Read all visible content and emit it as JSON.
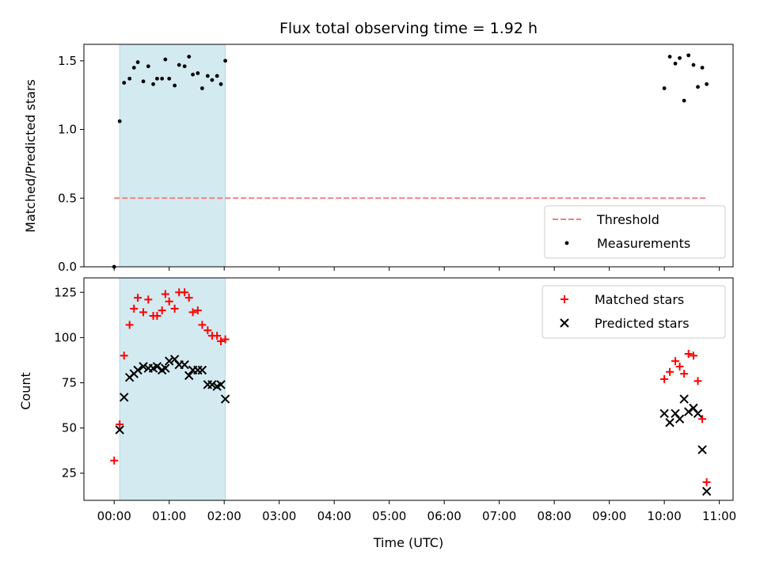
{
  "chart_data": [
    {
      "type": "scatter",
      "title": "Flux total observing time = 1.92 h",
      "ylabel": "Matched/Predicted stars",
      "ylim": [
        0,
        1.62
      ],
      "xlim": [
        -0.55,
        11.25
      ],
      "yticks": [
        0.0,
        0.5,
        1.0,
        1.5
      ],
      "ytick_labels": [
        "0.0",
        "0.5",
        "1.0",
        "1.5"
      ],
      "x_unit": "hours (UTC)",
      "shaded_interval": [
        0.1,
        2.02
      ],
      "shade_color": "#d4eaf1",
      "threshold": {
        "name": "Threshold",
        "value": 0.5,
        "x_range": [
          0.0,
          10.75
        ],
        "color": "#f2807f"
      },
      "series": [
        {
          "name": "Measurements",
          "marker": "dot",
          "color": "#000000",
          "points": [
            [
              0.0,
              0.0
            ],
            [
              0.1,
              1.06
            ],
            [
              0.18,
              1.34
            ],
            [
              0.28,
              1.37
            ],
            [
              0.36,
              1.45
            ],
            [
              0.43,
              1.49
            ],
            [
              0.53,
              1.35
            ],
            [
              0.62,
              1.46
            ],
            [
              0.71,
              1.33
            ],
            [
              0.78,
              1.37
            ],
            [
              0.87,
              1.37
            ],
            [
              0.93,
              1.51
            ],
            [
              1.0,
              1.37
            ],
            [
              1.1,
              1.32
            ],
            [
              1.18,
              1.47
            ],
            [
              1.28,
              1.46
            ],
            [
              1.36,
              1.53
            ],
            [
              1.43,
              1.4
            ],
            [
              1.52,
              1.41
            ],
            [
              1.6,
              1.3
            ],
            [
              1.7,
              1.39
            ],
            [
              1.78,
              1.36
            ],
            [
              1.87,
              1.39
            ],
            [
              1.94,
              1.33
            ],
            [
              2.02,
              1.5
            ],
            [
              10.0,
              1.3
            ],
            [
              10.1,
              1.53
            ],
            [
              10.2,
              1.48
            ],
            [
              10.28,
              1.52
            ],
            [
              10.36,
              1.21
            ],
            [
              10.44,
              1.54
            ],
            [
              10.53,
              1.47
            ],
            [
              10.61,
              1.31
            ],
            [
              10.69,
              1.45
            ],
            [
              10.77,
              1.33
            ]
          ]
        }
      ],
      "legend": {
        "location": "lower right",
        "entries": [
          "Threshold",
          "Measurements"
        ]
      }
    },
    {
      "type": "scatter",
      "xlabel": "Time (UTC)",
      "ylabel": "Count",
      "ylim": [
        10,
        133
      ],
      "xlim": [
        -0.55,
        11.25
      ],
      "yticks": [
        25,
        50,
        75,
        100,
        125
      ],
      "ytick_labels": [
        "25",
        "50",
        "75",
        "100",
        "125"
      ],
      "xticks": [
        0,
        1,
        2,
        3,
        4,
        5,
        6,
        7,
        8,
        9,
        10,
        11
      ],
      "xtick_labels": [
        "00:00",
        "01:00",
        "02:00",
        "03:00",
        "04:00",
        "05:00",
        "06:00",
        "07:00",
        "08:00",
        "09:00",
        "10:00",
        "11:00"
      ],
      "shaded_interval": [
        0.1,
        2.02
      ],
      "shade_color": "#d4eaf1",
      "series": [
        {
          "name": "Matched stars",
          "marker": "plus",
          "color": "#ff0000",
          "points": [
            [
              0.0,
              32
            ],
            [
              0.1,
              52
            ],
            [
              0.18,
              90
            ],
            [
              0.28,
              107
            ],
            [
              0.36,
              116
            ],
            [
              0.43,
              122
            ],
            [
              0.53,
              114
            ],
            [
              0.62,
              121
            ],
            [
              0.71,
              112
            ],
            [
              0.78,
              112
            ],
            [
              0.87,
              115
            ],
            [
              0.93,
              124
            ],
            [
              1.0,
              120
            ],
            [
              1.1,
              116
            ],
            [
              1.18,
              125
            ],
            [
              1.28,
              125
            ],
            [
              1.36,
              122
            ],
            [
              1.43,
              114
            ],
            [
              1.52,
              115
            ],
            [
              1.6,
              107
            ],
            [
              1.7,
              104
            ],
            [
              1.78,
              101
            ],
            [
              1.87,
              101
            ],
            [
              1.94,
              98
            ],
            [
              2.02,
              99
            ],
            [
              10.0,
              77
            ],
            [
              10.1,
              81
            ],
            [
              10.2,
              87
            ],
            [
              10.28,
              84
            ],
            [
              10.36,
              80
            ],
            [
              10.44,
              91
            ],
            [
              10.53,
              90
            ],
            [
              10.61,
              76
            ],
            [
              10.69,
              55
            ],
            [
              10.77,
              20
            ]
          ]
        },
        {
          "name": "Predicted stars",
          "marker": "x",
          "color": "#000000",
          "points": [
            [
              0.1,
              49
            ],
            [
              0.18,
              67
            ],
            [
              0.28,
              78
            ],
            [
              0.36,
              80
            ],
            [
              0.43,
              82
            ],
            [
              0.53,
              84
            ],
            [
              0.62,
              83
            ],
            [
              0.71,
              83
            ],
            [
              0.78,
              84
            ],
            [
              0.87,
              82
            ],
            [
              0.93,
              83
            ],
            [
              1.0,
              87
            ],
            [
              1.1,
              88
            ],
            [
              1.18,
              85
            ],
            [
              1.28,
              85
            ],
            [
              1.36,
              79
            ],
            [
              1.43,
              82
            ],
            [
              1.52,
              82
            ],
            [
              1.6,
              82
            ],
            [
              1.7,
              74
            ],
            [
              1.78,
              74
            ],
            [
              1.87,
              73
            ],
            [
              1.94,
              74
            ],
            [
              2.02,
              66
            ],
            [
              10.0,
              58
            ],
            [
              10.1,
              53
            ],
            [
              10.2,
              58
            ],
            [
              10.28,
              55
            ],
            [
              10.36,
              66
            ],
            [
              10.44,
              59
            ],
            [
              10.53,
              61
            ],
            [
              10.61,
              58
            ],
            [
              10.69,
              38
            ],
            [
              10.77,
              15
            ]
          ]
        }
      ],
      "legend": {
        "location": "upper right",
        "entries": [
          "Matched stars",
          "Predicted stars"
        ]
      }
    }
  ]
}
